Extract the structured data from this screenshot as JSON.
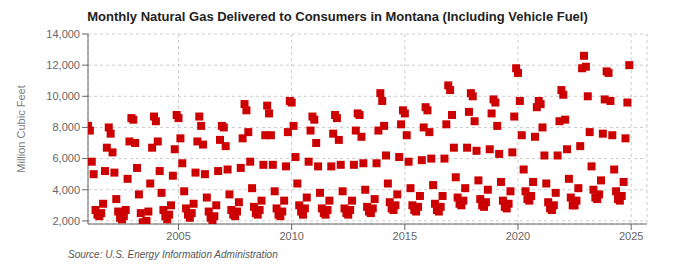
{
  "chart_data": {
    "type": "scatter",
    "title": "Monthly Natural Gas Delivered to Consumers in Montana (Including Vehicle Fuel)",
    "ylabel": "Million Cubic Feet",
    "annotations": [
      "Source: U.S. Energy Information Administration"
    ],
    "color": "#cc0000",
    "marker": "square",
    "grid": true,
    "xlim": [
      2001.0,
      2025.7
    ],
    "ylim": [
      1800,
      14000
    ],
    "xticks": [
      2005,
      2010,
      2015,
      2020,
      2025
    ],
    "yticks": [
      {
        "value": 2000,
        "label": "2,000"
      },
      {
        "value": 4000,
        "label": "4,000"
      },
      {
        "value": 6000,
        "label": "6,000"
      },
      {
        "value": 8000,
        "label": "8,000"
      },
      {
        "value": 10000,
        "label": "10,000"
      },
      {
        "value": 12000,
        "label": "12,000"
      },
      {
        "value": 14000,
        "label": "14,000"
      }
    ],
    "x": [
      2001.0,
      2001.083,
      2001.167,
      2001.25,
      2001.333,
      2001.417,
      2001.5,
      2001.583,
      2001.667,
      2001.75,
      2001.833,
      2001.917,
      2002.0,
      2002.083,
      2002.167,
      2002.25,
      2002.333,
      2002.417,
      2002.5,
      2002.583,
      2002.667,
      2002.75,
      2002.833,
      2002.917,
      2003.0,
      2003.083,
      2003.167,
      2003.25,
      2003.333,
      2003.417,
      2003.5,
      2003.583,
      2003.667,
      2003.75,
      2003.833,
      2003.917,
      2004.0,
      2004.083,
      2004.167,
      2004.25,
      2004.333,
      2004.417,
      2004.5,
      2004.583,
      2004.667,
      2004.75,
      2004.833,
      2004.917,
      2005.0,
      2005.083,
      2005.167,
      2005.25,
      2005.333,
      2005.417,
      2005.5,
      2005.583,
      2005.667,
      2005.75,
      2005.833,
      2005.917,
      2006.0,
      2006.083,
      2006.167,
      2006.25,
      2006.333,
      2006.417,
      2006.5,
      2006.583,
      2006.667,
      2006.75,
      2006.833,
      2006.917,
      2007.0,
      2007.083,
      2007.167,
      2007.25,
      2007.333,
      2007.417,
      2007.5,
      2007.583,
      2007.667,
      2007.75,
      2007.833,
      2007.917,
      2008.0,
      2008.083,
      2008.167,
      2008.25,
      2008.333,
      2008.417,
      2008.5,
      2008.583,
      2008.667,
      2008.75,
      2008.833,
      2008.917,
      2009.0,
      2009.083,
      2009.167,
      2009.25,
      2009.333,
      2009.417,
      2009.5,
      2009.583,
      2009.667,
      2009.75,
      2009.833,
      2009.917,
      2010.0,
      2010.083,
      2010.167,
      2010.25,
      2010.333,
      2010.417,
      2010.5,
      2010.583,
      2010.667,
      2010.75,
      2010.833,
      2010.917,
      2011.0,
      2011.083,
      2011.167,
      2011.25,
      2011.333,
      2011.417,
      2011.5,
      2011.583,
      2011.667,
      2011.75,
      2011.833,
      2011.917,
      2012.0,
      2012.083,
      2012.167,
      2012.25,
      2012.333,
      2012.417,
      2012.5,
      2012.583,
      2012.667,
      2012.75,
      2012.833,
      2012.917,
      2013.0,
      2013.083,
      2013.167,
      2013.25,
      2013.333,
      2013.417,
      2013.5,
      2013.583,
      2013.667,
      2013.75,
      2013.833,
      2013.917,
      2014.0,
      2014.083,
      2014.167,
      2014.25,
      2014.333,
      2014.417,
      2014.5,
      2014.583,
      2014.667,
      2014.75,
      2014.833,
      2014.917,
      2015.0,
      2015.083,
      2015.167,
      2015.25,
      2015.333,
      2015.417,
      2015.5,
      2015.583,
      2015.667,
      2015.75,
      2015.833,
      2015.917,
      2016.0,
      2016.083,
      2016.167,
      2016.25,
      2016.333,
      2016.417,
      2016.5,
      2016.583,
      2016.667,
      2016.75,
      2016.833,
      2016.917,
      2017.0,
      2017.083,
      2017.167,
      2017.25,
      2017.333,
      2017.417,
      2017.5,
      2017.583,
      2017.667,
      2017.75,
      2017.833,
      2017.917,
      2018.0,
      2018.083,
      2018.167,
      2018.25,
      2018.333,
      2018.417,
      2018.5,
      2018.583,
      2018.667,
      2018.75,
      2018.833,
      2018.917,
      2019.0,
      2019.083,
      2019.167,
      2019.25,
      2019.333,
      2019.417,
      2019.5,
      2019.583,
      2019.667,
      2019.75,
      2019.833,
      2019.917,
      2020.0,
      2020.083,
      2020.167,
      2020.25,
      2020.333,
      2020.417,
      2020.5,
      2020.583,
      2020.667,
      2020.75,
      2020.833,
      2020.917,
      2021.0,
      2021.083,
      2021.167,
      2021.25,
      2021.333,
      2021.417,
      2021.5,
      2021.583,
      2021.667,
      2021.75,
      2021.833,
      2021.917,
      2022.0,
      2022.083,
      2022.167,
      2022.25,
      2022.333,
      2022.417,
      2022.5,
      2022.583,
      2022.667,
      2022.75,
      2022.833,
      2022.917,
      2023.0,
      2023.083,
      2023.167,
      2023.25,
      2023.333,
      2023.417,
      2023.5,
      2023.583,
      2023.667,
      2023.75,
      2023.833,
      2023.917,
      2024.0,
      2024.083,
      2024.167,
      2024.25,
      2024.333,
      2024.417,
      2024.5,
      2024.583,
      2024.667,
      2024.75,
      2024.833,
      2024.917
    ],
    "values": [
      8100,
      7800,
      5800,
      5000,
      2700,
      2400,
      2300,
      2500,
      3100,
      5200,
      6700,
      8000,
      7600,
      6400,
      5100,
      3400,
      2600,
      2200,
      2100,
      2300,
      2700,
      4700,
      7100,
      8600,
      8500,
      7000,
      5400,
      3700,
      2500,
      1900,
      1900,
      2000,
      2600,
      4400,
      6700,
      8700,
      8400,
      7100,
      5200,
      3800,
      2700,
      2300,
      2100,
      2400,
      3000,
      4900,
      6600,
      8800,
      8600,
      7300,
      5700,
      3900,
      2800,
      2400,
      2200,
      2500,
      3100,
      5100,
      7100,
      8700,
      8100,
      6900,
      5000,
      3500,
      2600,
      2200,
      2000,
      2300,
      3000,
      5200,
      7200,
      8100,
      8000,
      6800,
      5300,
      3700,
      2700,
      2400,
      2300,
      2600,
      3200,
      5400,
      7300,
      9500,
      9100,
      7700,
      5800,
      4100,
      2900,
      2500,
      2400,
      2700,
      3300,
      5600,
      7500,
      9400,
      8900,
      7500,
      5600,
      3900,
      2800,
      2400,
      2300,
      2600,
      3300,
      5500,
      7700,
      9700,
      9600,
      8100,
      6100,
      4400,
      3000,
      2600,
      2400,
      2800,
      3500,
      5800,
      7800,
      8700,
      8500,
      7000,
      5500,
      3800,
      2800,
      2500,
      2400,
      2700,
      3300,
      5500,
      7600,
      8800,
      8600,
      7200,
      5600,
      3900,
      2800,
      2500,
      2400,
      2700,
      3300,
      5600,
      7800,
      8900,
      8800,
      7400,
      5700,
      4000,
      2900,
      2600,
      2500,
      2800,
      3400,
      5700,
      7800,
      10200,
      9700,
      8100,
      6200,
      4400,
      3200,
      2800,
      2700,
      3000,
      3700,
      6100,
      8200,
      9100,
      8900,
      7500,
      5800,
      4100,
      3000,
      2700,
      2600,
      2900,
      3600,
      5900,
      8000,
      9300,
      9100,
      7700,
      6000,
      4300,
      3100,
      2700,
      2600,
      2900,
      3600,
      6000,
      8200,
      10700,
      10400,
      8800,
      6700,
      4800,
      3500,
      3100,
      3000,
      3300,
      4100,
      6700,
      9000,
      10200,
      10000,
      8400,
      6500,
      4600,
      3400,
      3000,
      2900,
      3200,
      4000,
      6600,
      8900,
      9800,
      9600,
      8100,
      6300,
      4500,
      3300,
      2900,
      2800,
      3100,
      3900,
      6400,
      8700,
      11800,
      11500,
      9700,
      7500,
      5300,
      3900,
      3400,
      3300,
      3600,
      4500,
      7400,
      9300,
      9700,
      9500,
      8000,
      6200,
      4400,
      3200,
      2800,
      2700,
      3000,
      3800,
      6200,
      8400,
      10400,
      10100,
      8500,
      6600,
      4700,
      3500,
      3000,
      3000,
      3300,
      4100,
      6800,
      11800,
      12600,
      11900,
      10000,
      7700,
      5500,
      4000,
      3500,
      3400,
      3700,
      4600,
      7600,
      9800,
      11600,
      11500,
      9700,
      7500,
      5300,
      3900,
      3400,
      3300,
      3600,
      4500,
      7300,
      9600,
      12000
    ]
  }
}
